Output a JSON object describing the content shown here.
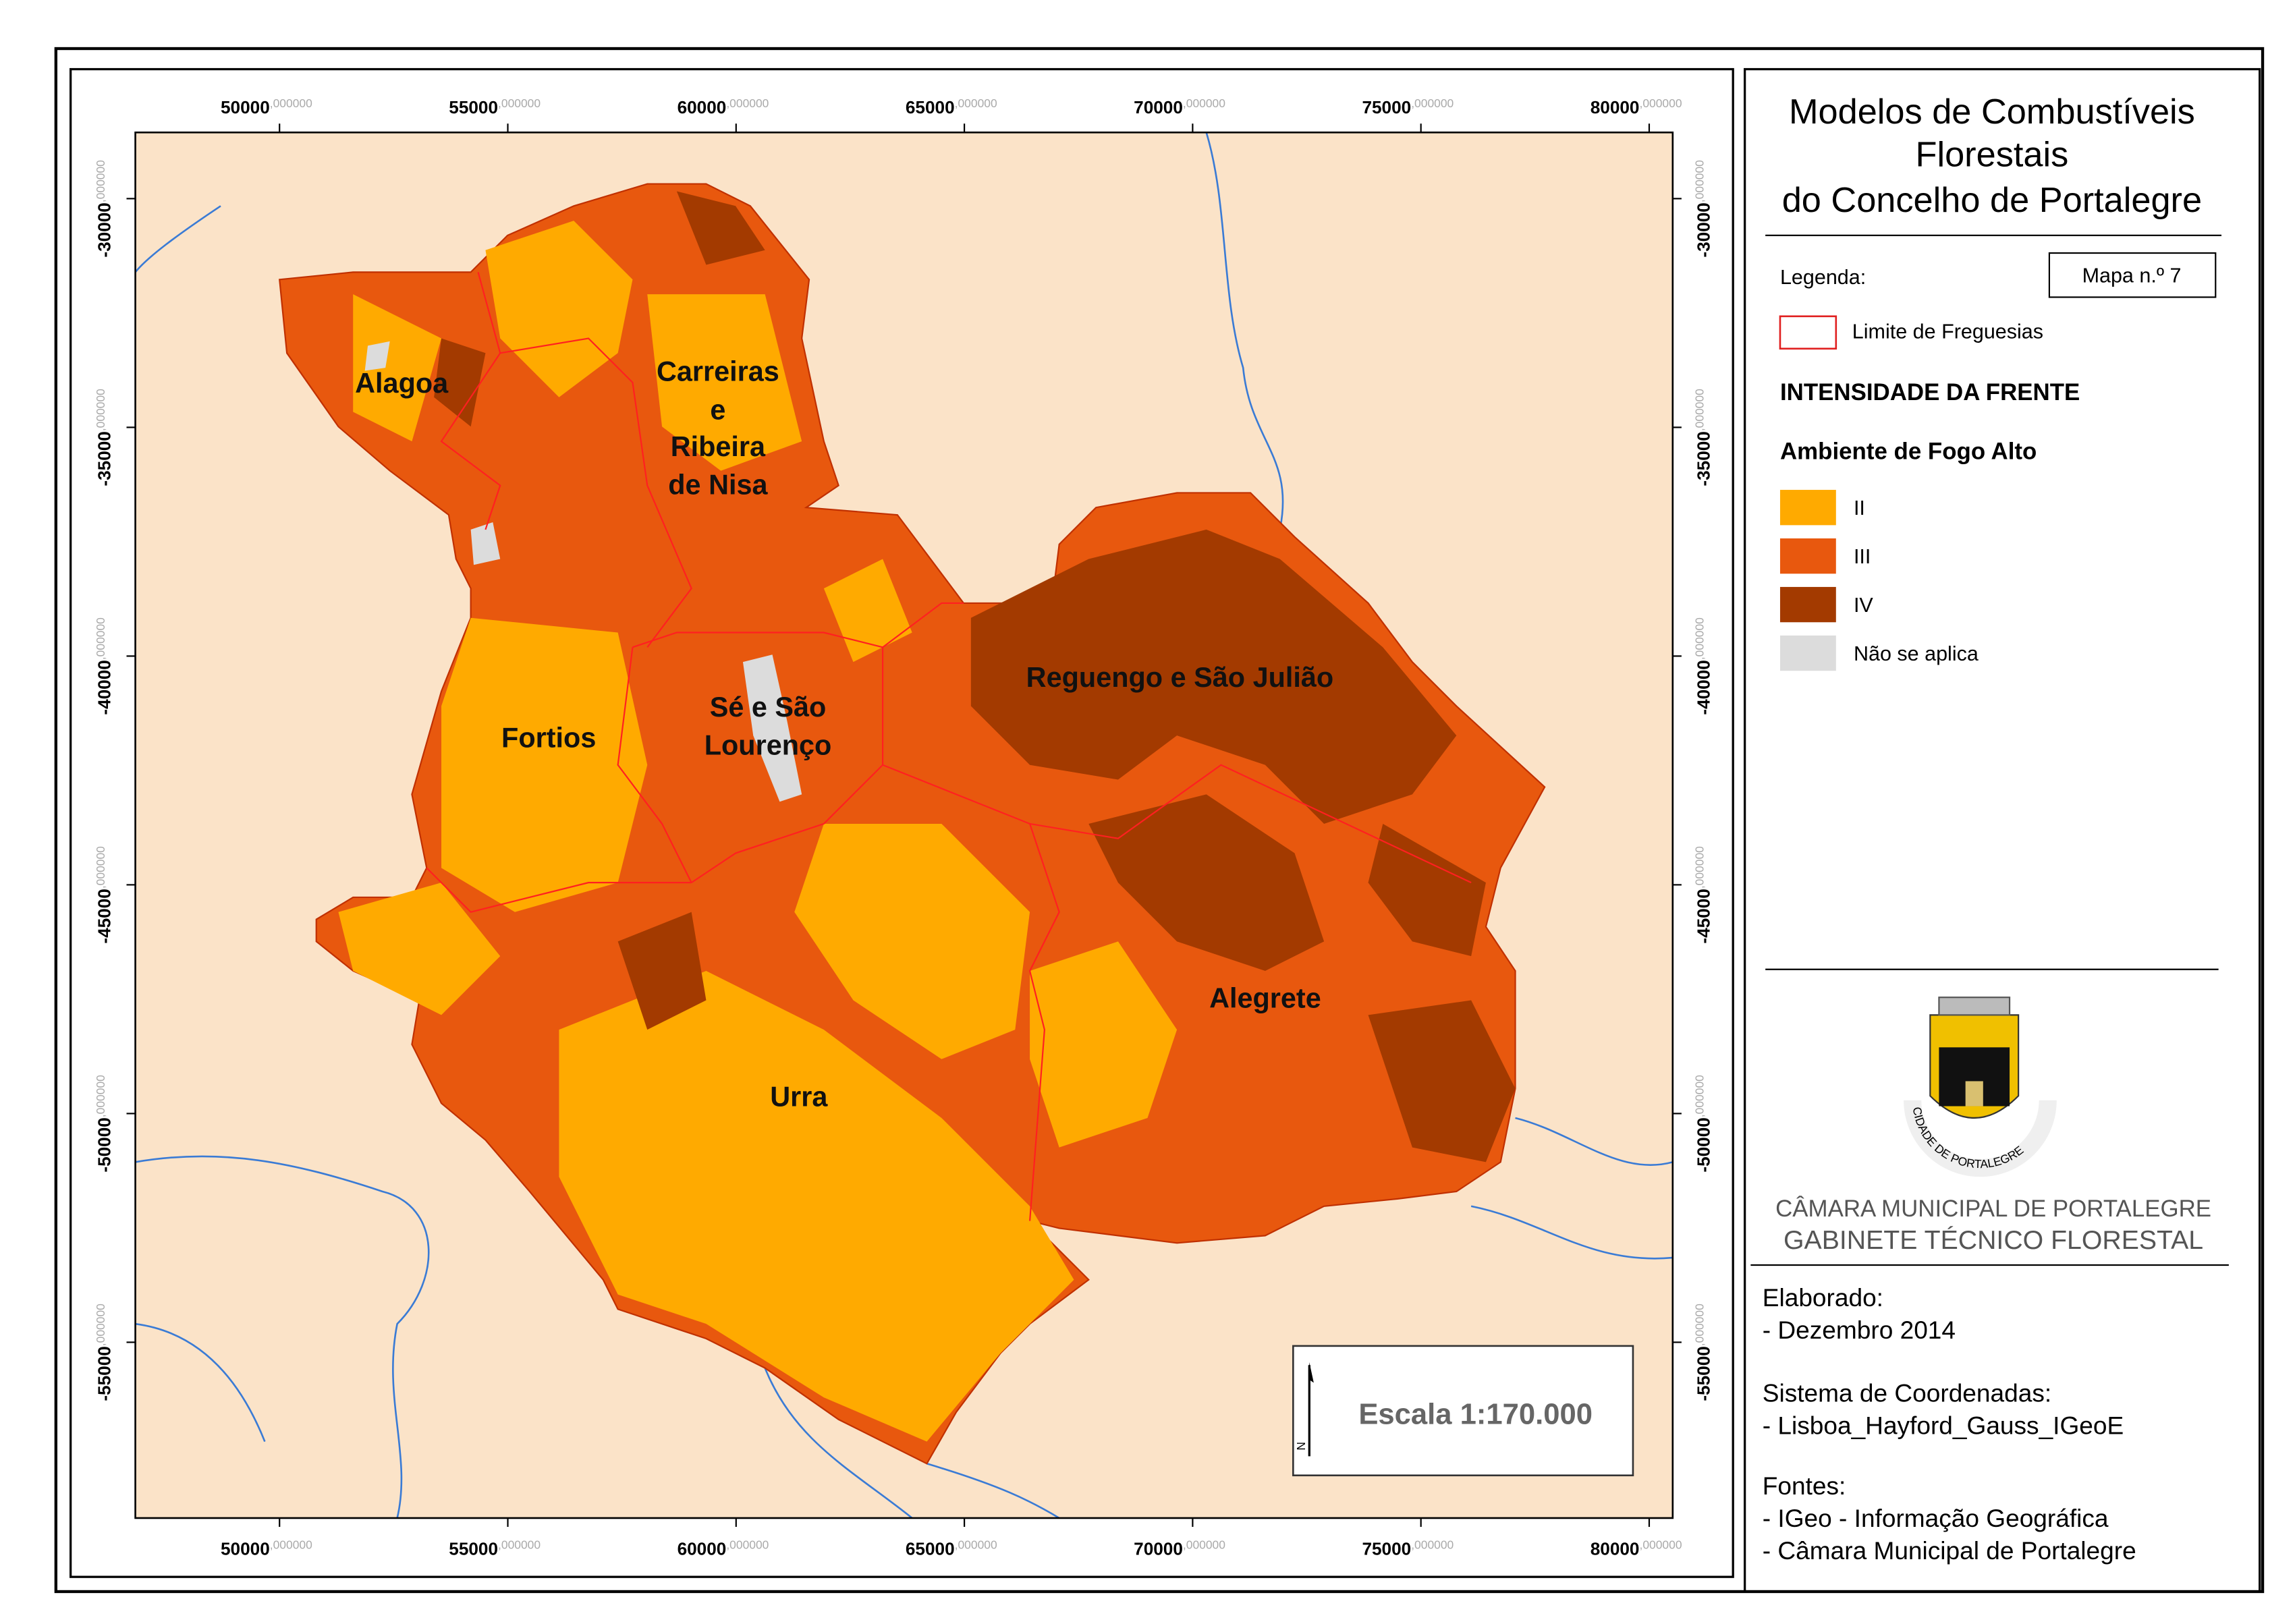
{
  "map": {
    "x_ticks": [
      {
        "value": 50000,
        "label": "50000",
        "decimals": ",000000"
      },
      {
        "value": 55000,
        "label": "55000",
        "decimals": ",000000"
      },
      {
        "value": 60000,
        "label": "60000",
        "decimals": ",000000"
      },
      {
        "value": 65000,
        "label": "65000",
        "decimals": ",000000"
      },
      {
        "value": 70000,
        "label": "70000",
        "decimals": ",000000"
      },
      {
        "value": 75000,
        "label": "75000",
        "decimals": ",000000"
      },
      {
        "value": 80000,
        "label": "80000",
        "decimals": ",000000"
      }
    ],
    "y_ticks": [
      {
        "value": -30000,
        "label": "-30000",
        "decimals": ",000000"
      },
      {
        "value": -35000,
        "label": "-35000",
        "decimals": ",000000"
      },
      {
        "value": -40000,
        "label": "-40000",
        "decimals": ",000000"
      },
      {
        "value": -45000,
        "label": "-45000",
        "decimals": ",000000"
      },
      {
        "value": -50000,
        "label": "-50000",
        "decimals": ",000000"
      },
      {
        "value": -55000,
        "label": "-55000",
        "decimals": ",000000"
      }
    ],
    "places": [
      "Alagoa",
      "Carreiras",
      "e",
      "Ribeira",
      "de Nisa",
      "Reguengo e São Julião",
      "Sé e São",
      "Lourenço",
      "Fortios",
      "Alegrete",
      "Urra"
    ],
    "scale": "Escala 1:170.000",
    "north": "N"
  },
  "panel": {
    "title": [
      "Modelos de Combustíveis",
      "Florestais",
      "do Concelho de Portalegre"
    ],
    "legend_label": "Legenda:",
    "map_number": "Mapa n.º 7",
    "boundary": "Limite de Freguesias",
    "heading": "INTENSIDADE DA FRENTE",
    "subheading": "Ambiente de Fogo Alto",
    "classes": [
      {
        "label": "II",
        "color": "#ffaa00"
      },
      {
        "label": "III",
        "color": "#e8580e"
      },
      {
        "label": "IV",
        "color": "#a33a00"
      },
      {
        "label": "Não se aplica",
        "color": "#dcdcdc"
      }
    ],
    "crest": "CIDADE DE PORTALEGRE",
    "institution": [
      "CÂMARA MUNICIPAL DE PORTALEGRE",
      "GABINETE TÉCNICO FLORESTAL"
    ],
    "notes": [
      "Elaborado:",
      "- Dezembro 2014",
      "Sistema de Coordenadas:",
      "- Lisboa_Hayford_Gauss_IGeoE",
      "Fontes:",
      "- IGeo - Informação Geográfica",
      "- Câmara Municipal de Portalegre"
    ]
  }
}
